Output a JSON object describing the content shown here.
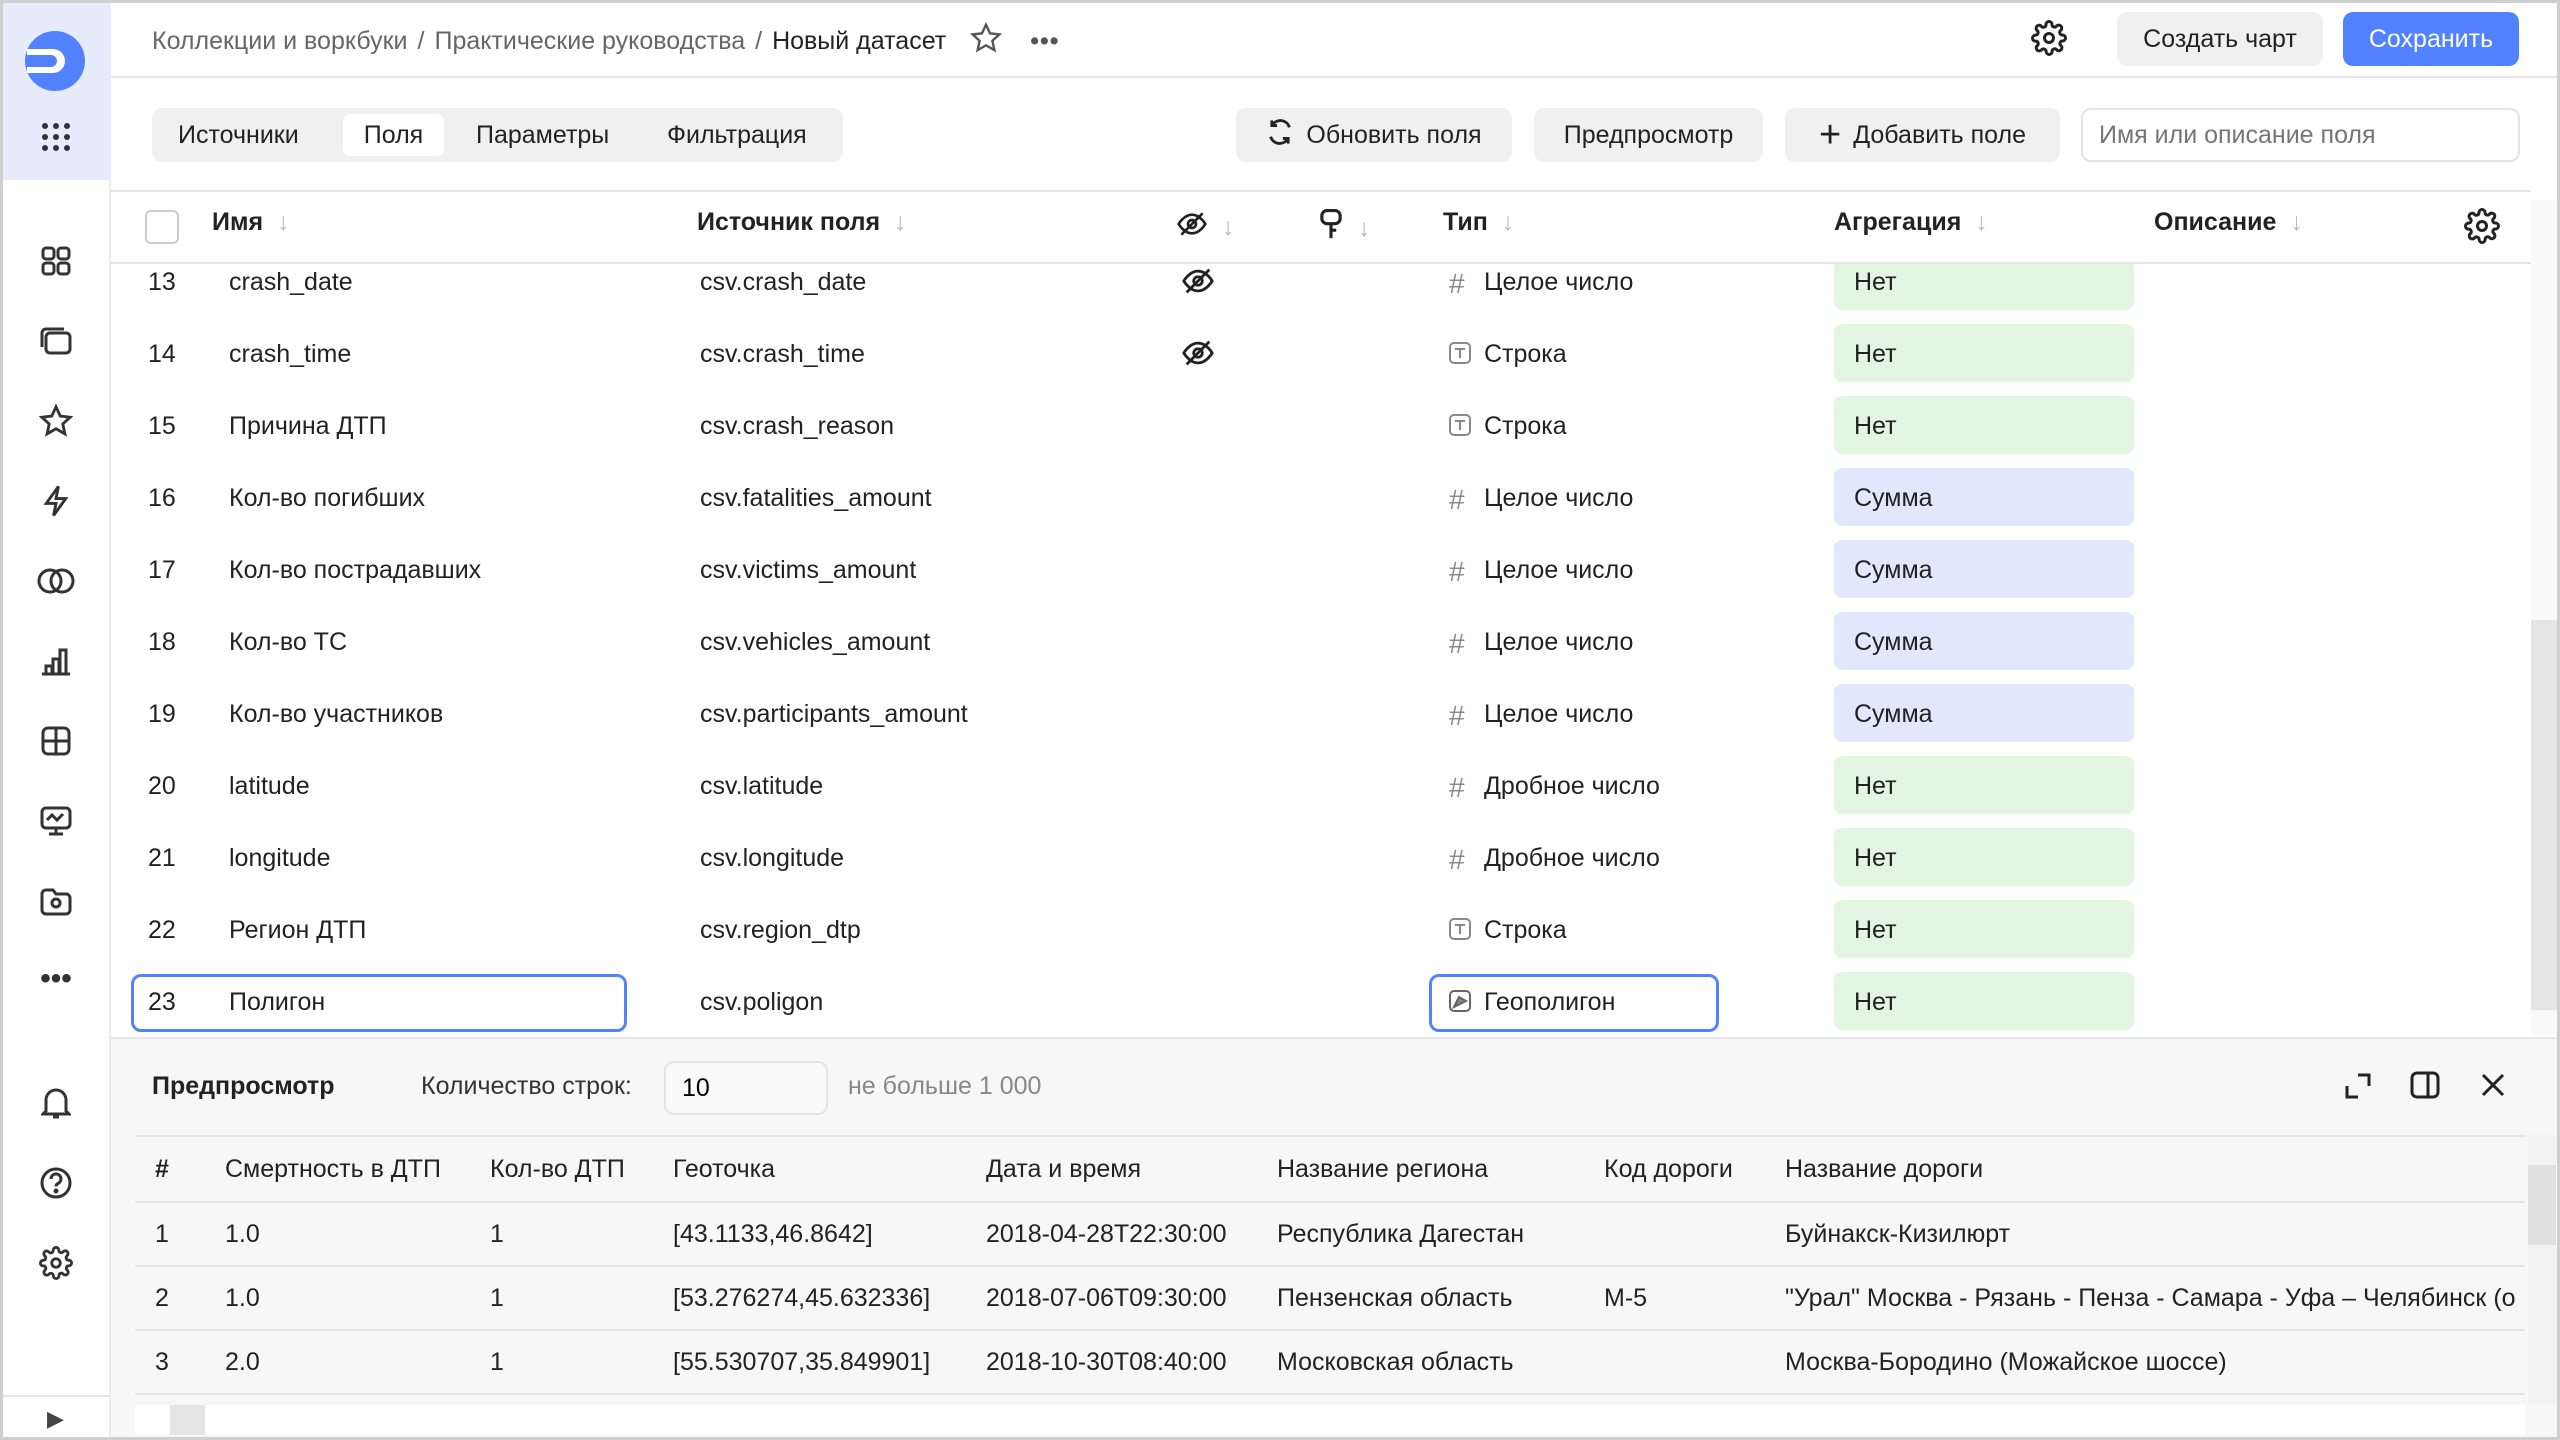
{
  "header": {
    "breadcrumbs": [
      "Коллекции и воркбуки",
      "Практические руководства",
      "Новый датасет"
    ],
    "separator": "/",
    "create_chart": "Создать чарт",
    "save": "Сохранить"
  },
  "tabs": [
    "Источники",
    "Поля",
    "Параметры",
    "Фильтрация"
  ],
  "active_tab": "Поля",
  "toolbar": {
    "refresh": "Обновить поля",
    "preview": "Предпросмотр",
    "add_field": "Добавить поле",
    "search_placeholder": "Имя или описание поля"
  },
  "columns": {
    "name": "Имя",
    "source": "Источник поля",
    "type": "Тип",
    "aggregation": "Агрегация",
    "description": "Описание"
  },
  "fields": [
    {
      "n": "13",
      "name": "crash_date",
      "source": "csv.crash_date",
      "hidden": true,
      "type_icon": "hash",
      "type": "Целое число",
      "agg": "Нет"
    },
    {
      "n": "14",
      "name": "crash_time",
      "source": "csv.crash_time",
      "hidden": true,
      "type_icon": "text",
      "type": "Строка",
      "agg": "Нет"
    },
    {
      "n": "15",
      "name": "Причина ДТП",
      "source": "csv.crash_reason",
      "hidden": false,
      "type_icon": "text",
      "type": "Строка",
      "agg": "Нет"
    },
    {
      "n": "16",
      "name": "Кол-во погибших",
      "source": "csv.fatalities_amount",
      "hidden": false,
      "type_icon": "hash",
      "type": "Целое число",
      "agg": "Сумма"
    },
    {
      "n": "17",
      "name": "Кол-во пострадавших",
      "source": "csv.victims_amount",
      "hidden": false,
      "type_icon": "hash",
      "type": "Целое число",
      "agg": "Сумма"
    },
    {
      "n": "18",
      "name": "Кол-во ТС",
      "source": "csv.vehicles_amount",
      "hidden": false,
      "type_icon": "hash",
      "type": "Целое число",
      "agg": "Сумма"
    },
    {
      "n": "19",
      "name": "Кол-во участников",
      "source": "csv.participants_amount",
      "hidden": false,
      "type_icon": "hash",
      "type": "Целое число",
      "agg": "Сумма"
    },
    {
      "n": "20",
      "name": "latitude",
      "source": "csv.latitude",
      "hidden": false,
      "type_icon": "hash",
      "type": "Дробное число",
      "agg": "Нет"
    },
    {
      "n": "21",
      "name": "longitude",
      "source": "csv.longitude",
      "hidden": false,
      "type_icon": "hash",
      "type": "Дробное число",
      "agg": "Нет"
    },
    {
      "n": "22",
      "name": "Регион ДТП",
      "source": "csv.region_dtp",
      "hidden": false,
      "type_icon": "text",
      "type": "Строка",
      "agg": "Нет"
    },
    {
      "n": "23",
      "name": "Полигон",
      "source": "csv.poligon",
      "hidden": false,
      "type_icon": "geo",
      "type": "Геополигон",
      "agg": "Нет",
      "highlighted": true
    }
  ],
  "agg_colors": {
    "Нет": "#e2f6e1",
    "Сумма": "#e1e8fd"
  },
  "preview": {
    "title": "Предпросмотр",
    "rows_label": "Количество строк:",
    "rows_value": "10",
    "rows_hint": "не больше 1 000",
    "columns": [
      "#",
      "Смертность в ДТП",
      "Кол-во ДТП",
      "Геоточка",
      "Дата и время",
      "Название региона",
      "Код дороги",
      "Название дороги"
    ],
    "rows": [
      [
        "1",
        "1.0",
        "1",
        "[43.1133,46.8642]",
        "2018-04-28T22:30:00",
        "Республика Дагестан",
        "",
        "Буйнакск-Кизилюрт"
      ],
      [
        "2",
        "1.0",
        "1",
        "[53.276274,45.632336]",
        "2018-07-06T09:30:00",
        "Пензенская область",
        "М-5",
        "\"Урал\" Москва - Рязань - Пенза - Самара - Уфа – Челябинск (о"
      ],
      [
        "3",
        "2.0",
        "1",
        "[55.530707,35.849901]",
        "2018-10-30T08:40:00",
        "Московская область",
        "",
        "Москва-Бородино (Можайское шоссе)"
      ]
    ]
  },
  "accent": "#5282ff"
}
